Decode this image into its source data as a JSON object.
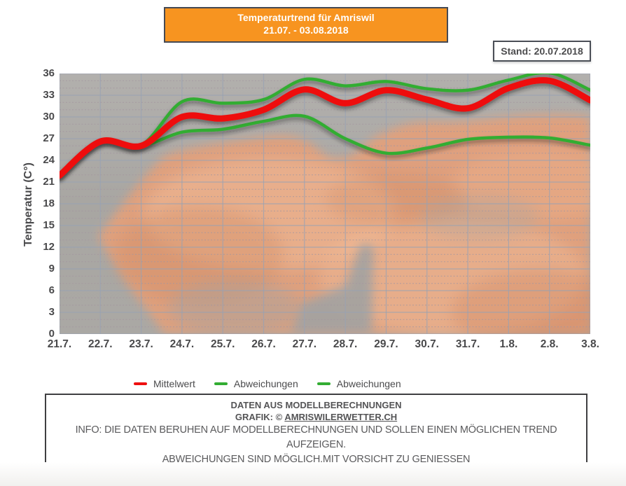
{
  "title": {
    "line1": "Temperaturtrend für Amriswil",
    "line2": "21.07. - 03.08.2018"
  },
  "stand_label": "Stand: 20.07.2018",
  "colors": {
    "title_bg": "#f79420",
    "box_border": "#454a54",
    "text_dark": "#49494b",
    "red": "#ee1010",
    "green": "#33ad33",
    "grid_solid": "#98a2b4",
    "grid_dotted": "#a396a0"
  },
  "background_image": "orange-sunset-clouds-photo",
  "chart_data": {
    "type": "line",
    "title": "Temperaturtrend für Amriswil 21.07. - 03.08.2018",
    "xlabel": "",
    "ylabel": "Temperatur (C°)",
    "ylim": [
      0,
      36
    ],
    "ytick_step": 3,
    "grid": true,
    "legend_position": "bottom",
    "categories": [
      "21.7.",
      "22.7.",
      "23.7.",
      "24.7.",
      "25.7.",
      "26.7.",
      "27.7.",
      "28.7.",
      "29.7.",
      "30.7.",
      "31.7.",
      "1.8.",
      "2.8.",
      "3.8."
    ],
    "series": [
      {
        "name": "Mittelwert",
        "color": "#ee1010",
        "stroke_width": 9,
        "values": [
          21.9,
          26.6,
          26.0,
          30.0,
          29.8,
          31.0,
          33.8,
          31.9,
          33.7,
          32.4,
          31.2,
          34.0,
          35.0,
          32.3
        ]
      },
      {
        "name": "Abweichungen",
        "color": "#33ad33",
        "stroke_width": 4.5,
        "values": [
          21.9,
          26.6,
          26.1,
          32.1,
          31.9,
          32.4,
          35.2,
          34.3,
          34.9,
          33.9,
          33.7,
          35.1,
          36.1,
          33.7
        ]
      },
      {
        "name": "Abweichungen",
        "color": "#33ad33",
        "stroke_width": 4.5,
        "values": [
          21.9,
          26.6,
          26.0,
          27.9,
          28.3,
          29.4,
          30.1,
          27.0,
          25.0,
          25.7,
          26.9,
          27.2,
          27.1,
          26.1
        ]
      }
    ]
  },
  "footer": {
    "line1": "DATEN AUS MODELLBERECHNUNGEN",
    "line2_prefix": "GRAFIK: © ",
    "line2_link": "AMRISWILERWETTER.CH",
    "line3": "INFO: DIE DATEN BERUHEN AUF MODELLBERECHNUNGEN UND SOLLEN EINEN MÖGLICHEN TREND AUFZEIGEN.",
    "line4": "ABWEICHUNGEN SIND MÖGLICH.MIT VORSICHT ZU GENIESSEN"
  }
}
